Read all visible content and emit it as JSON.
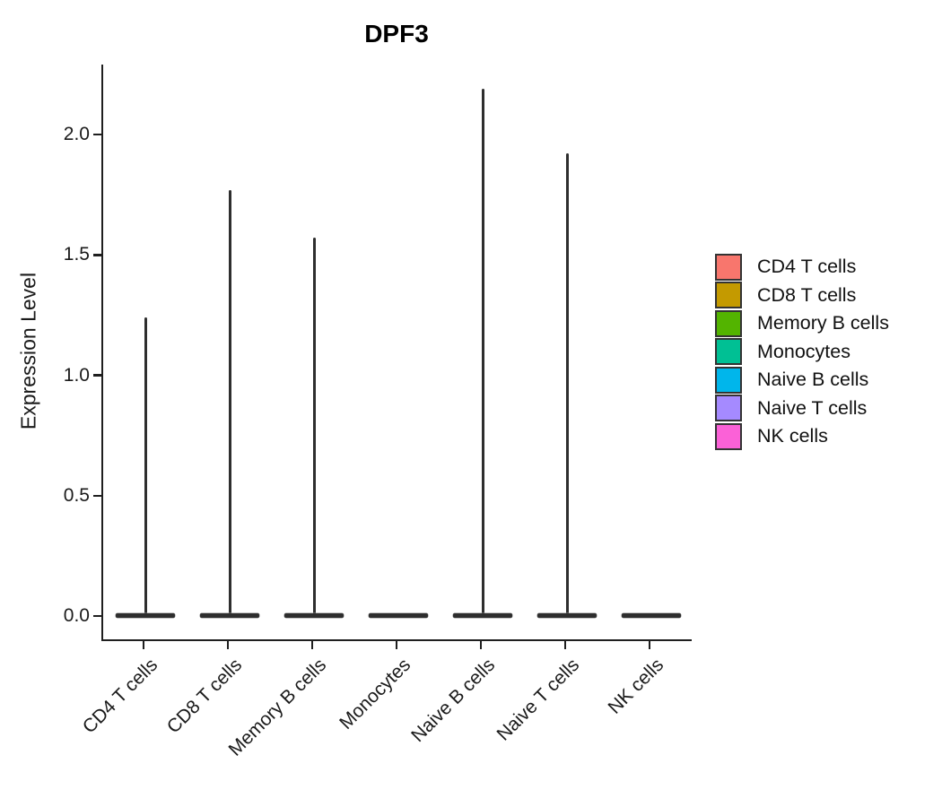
{
  "title": "DPF3",
  "ylabel": "Expression Level",
  "chart_data": {
    "type": "violin",
    "title": "DPF3",
    "subtitle": "",
    "xlabel": "",
    "ylabel": "Expression Level",
    "ylim": [
      0,
      2.29
    ],
    "yticks": [
      "0.0",
      "0.5",
      "1.0",
      "1.5",
      "2.0"
    ],
    "grid": false,
    "outline_color": "#2e2e2e",
    "categories": [
      "CD4 T cells",
      "CD8 T cells",
      "Memory B cells",
      "Monocytes",
      "Naive B cells",
      "Naive T cells",
      "NK cells"
    ],
    "series": [
      {
        "name": "CD4 T cells",
        "color": "#F8766D",
        "max_expression": 1.24,
        "density_peak_at": 0.0
      },
      {
        "name": "CD8 T cells",
        "color": "#C49A00",
        "max_expression": 1.77,
        "density_peak_at": 0.0
      },
      {
        "name": "Memory B cells",
        "color": "#53B400",
        "max_expression": 1.57,
        "density_peak_at": 0.0
      },
      {
        "name": "Monocytes",
        "color": "#00C094",
        "max_expression": 0.0,
        "density_peak_at": 0.0
      },
      {
        "name": "Naive B cells",
        "color": "#00B6EB",
        "max_expression": 2.19,
        "density_peak_at": 0.0
      },
      {
        "name": "Naive T cells",
        "color": "#A58AFF",
        "max_expression": 1.92,
        "density_peak_at": 0.0
      },
      {
        "name": "NK cells",
        "color": "#FB61D7",
        "max_expression": 0.0,
        "density_peak_at": 0.0
      }
    ],
    "legend": {
      "position": "right",
      "entries": [
        "CD4 T cells",
        "CD8 T cells",
        "Memory B cells",
        "Monocytes",
        "Naive B cells",
        "Naive T cells",
        "NK cells"
      ]
    }
  }
}
